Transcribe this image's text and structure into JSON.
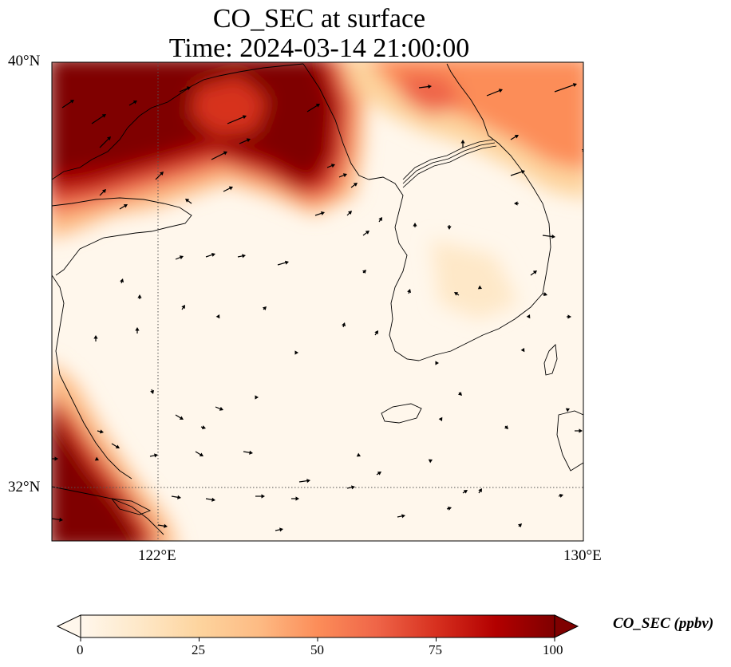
{
  "title": {
    "line1": "CO_SEC at surface",
    "line2": "Time: 2024-03-14 21:00:00"
  },
  "map": {
    "extent": {
      "lon_min": 120,
      "lon_max": 130,
      "lat_min": 31,
      "lat_max": 40
    },
    "gridlines": {
      "lon": [
        122
      ],
      "lat": [
        32
      ]
    },
    "lat_labels": [
      "40°N",
      "32°N"
    ],
    "lon_labels": [
      "122°E",
      "130°E"
    ],
    "colormap": "OrRd",
    "features": [
      "coastlines",
      "borders",
      "wind-vectors"
    ]
  },
  "colorbar": {
    "label": "CO_SEC (ppbv)",
    "min": 0,
    "max": 100,
    "ticks": [
      "0",
      "25",
      "50",
      "75",
      "100"
    ],
    "extend": "both",
    "colors": [
      "#fff7ec",
      "#fee8c8",
      "#fdd49e",
      "#fdbb84",
      "#fc8d59",
      "#ef6548",
      "#d7301f",
      "#b30000",
      "#7f0000"
    ]
  }
}
